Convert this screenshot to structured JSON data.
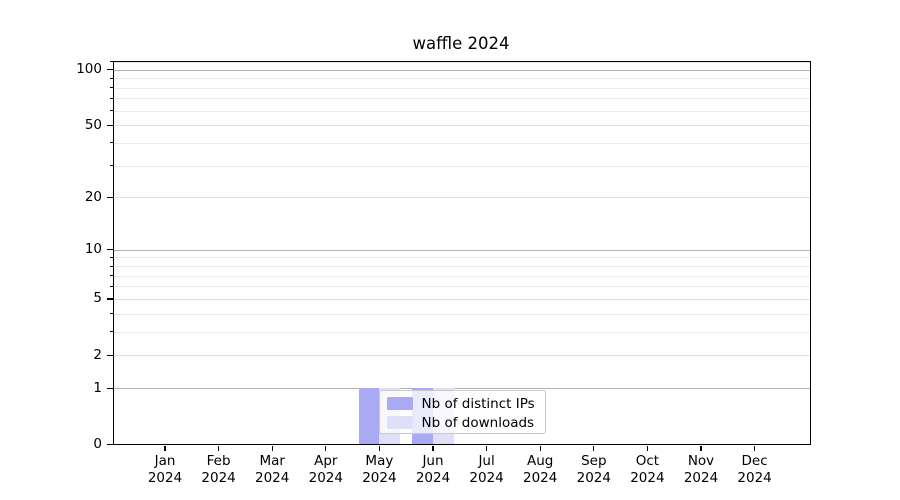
{
  "chart_data": {
    "type": "bar",
    "title": "waffle 2024",
    "x_tick_months": [
      "Jan",
      "Feb",
      "Mar",
      "Apr",
      "May",
      "Jun",
      "Jul",
      "Aug",
      "Sep",
      "Oct",
      "Nov",
      "Dec"
    ],
    "x_tick_year": "2024",
    "series": [
      {
        "name": "Nb of distinct IPs",
        "color": "#aaaaf4",
        "values": [
          0,
          0,
          0,
          0,
          1,
          1,
          0,
          0,
          0,
          0,
          0,
          0
        ]
      },
      {
        "name": "Nb of downloads",
        "color": "#dfdff8",
        "values": [
          0,
          0,
          0,
          0,
          1,
          1,
          0,
          0,
          0,
          0,
          0,
          0
        ]
      }
    ],
    "xlabel": "",
    "ylabel": "",
    "yscale": "symlog-like (log10(1+y))",
    "ylim": [
      0,
      112
    ],
    "y_major_ticks": [
      0,
      1,
      2,
      5,
      10,
      20,
      50,
      100
    ],
    "y_minor_ticks": [
      3,
      4,
      6,
      7,
      8,
      9,
      30,
      40,
      60,
      70,
      80,
      90,
      110
    ],
    "grid": "horizontal, major and minor",
    "legend_entries": [
      "Nb of distinct IPs",
      "Nb of downloads"
    ],
    "legend_position": "lower center, overlapping May/Jun bars"
  },
  "colors": {
    "background": "#ffffff",
    "axis_spine": "#000000",
    "grid_decade": "#b2b2b2",
    "grid_major": "#e0e0e0",
    "grid_minor": "#e9e9e9",
    "tick_text": "#000000",
    "legend_border": "#c9c9c9",
    "legend_background": "rgba(255,255,255,0.75)"
  }
}
